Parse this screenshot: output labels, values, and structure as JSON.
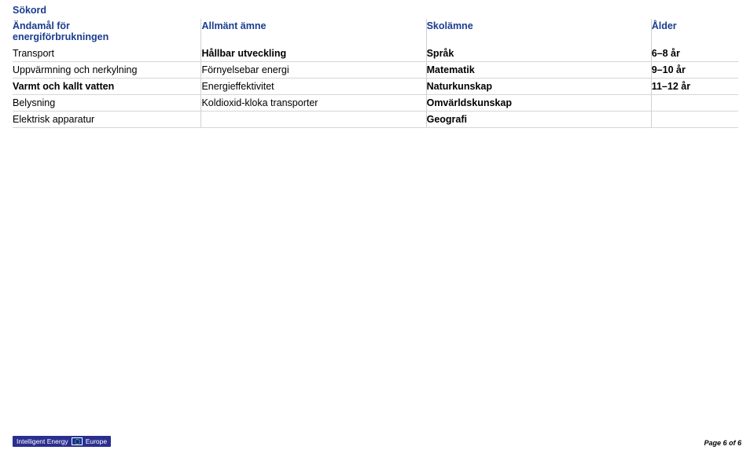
{
  "section_title": "Sökord",
  "table": {
    "header": {
      "col1_line1": "Ändamål för",
      "col1_line2": "energiförbrukningen",
      "col2": "Allmänt ämne",
      "col3": "Skolämne",
      "col4": "Ålder"
    },
    "rows": [
      {
        "c1": "Transport",
        "c1_bold": false,
        "c2": "Hållbar utveckling",
        "c2_bold": true,
        "c3": "Språk",
        "c3_bold": true,
        "c4": "6–8 år",
        "c4_bold": true
      },
      {
        "c1": "Uppvärmning och nerkylning",
        "c1_bold": false,
        "c2": "Förnyelsebar energi",
        "c2_bold": false,
        "c3": "Matematik",
        "c3_bold": true,
        "c4": "9–10 år",
        "c4_bold": true
      },
      {
        "c1": "Varmt och kallt vatten",
        "c1_bold": true,
        "c2": "Energieffektivitet",
        "c2_bold": false,
        "c3": "Naturkunskap",
        "c3_bold": true,
        "c4": "11–12 år",
        "c4_bold": true
      },
      {
        "c1": "Belysning",
        "c1_bold": false,
        "c2": "Koldioxid-kloka transporter",
        "c2_bold": false,
        "c3": "Omvärldskunskap",
        "c3_bold": true,
        "c4": "",
        "c4_bold": false
      },
      {
        "c1": "Elektrisk apparatur",
        "c1_bold": false,
        "c2": "",
        "c2_bold": false,
        "c3": "Geografi",
        "c3_bold": true,
        "c4": "",
        "c4_bold": false
      }
    ]
  },
  "footer": {
    "logo_text_1": "Intelligent Energy",
    "logo_text_2": "Europe",
    "page_label": "Page 6 of 6"
  },
  "colors": {
    "heading": "#1a3d8f",
    "row_border": "#d6d6d6",
    "col_border": "#d0d0d0",
    "logo_bg": "#2a2f8f",
    "text": "#000000",
    "background": "#ffffff"
  }
}
